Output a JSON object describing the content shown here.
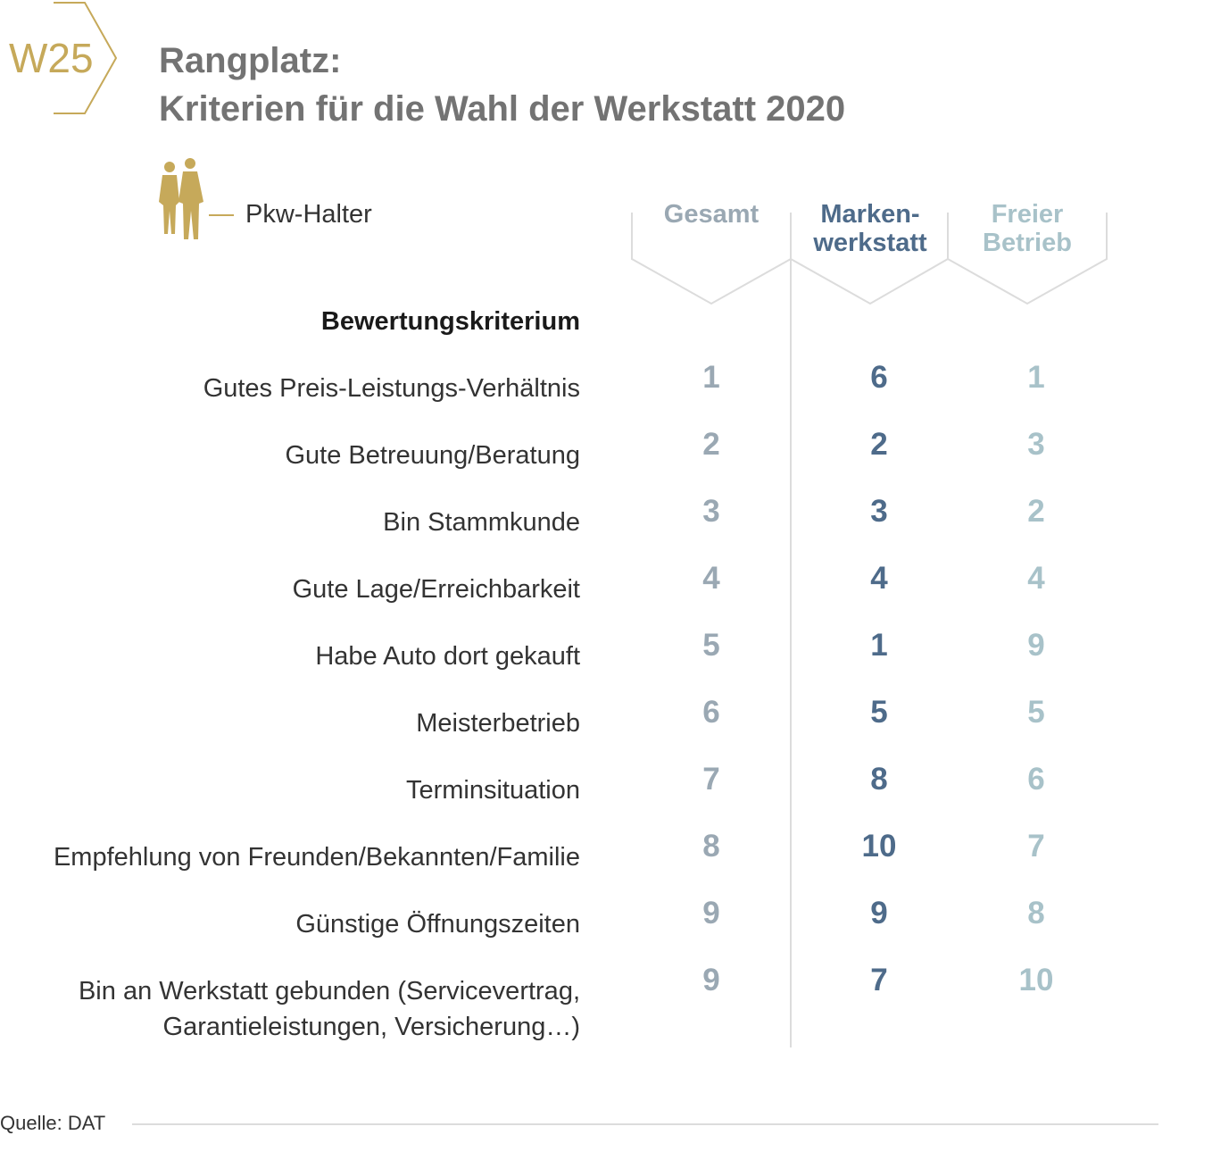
{
  "badge": {
    "label": "W25"
  },
  "title": {
    "line1": "Rangplatz:",
    "line2": "Kriterien für die Wahl der Werkstatt 2020"
  },
  "legend": {
    "label": "Pkw-Halter",
    "icon": "people-silhouette-icon"
  },
  "colors": {
    "gold": "#c6a95a",
    "gesamt": "#9aa8b3",
    "markenwerkstatt": "#4e6b8a",
    "freier_betrieb": "#a8c2c9",
    "text": "#333333",
    "title": "#737373"
  },
  "chart_data": {
    "type": "table",
    "row_header": "Bewertungskriterium",
    "columns": [
      {
        "key": "gesamt",
        "line1": "Gesamt",
        "line2": ""
      },
      {
        "key": "markenwerkstatt",
        "line1": "Marken-",
        "line2": "werkstatt"
      },
      {
        "key": "freier_betrieb",
        "line1": "Freier",
        "line2": "Betrieb"
      }
    ],
    "rows": [
      {
        "line1": "Gutes Preis-Leistungs-Verhältnis",
        "line2": "",
        "gesamt": "1",
        "markenwerkstatt": "6",
        "freier_betrieb": "1"
      },
      {
        "line1": "Gute Betreuung/Beratung",
        "line2": "",
        "gesamt": "2",
        "markenwerkstatt": "2",
        "freier_betrieb": "3"
      },
      {
        "line1": "Bin Stammkunde",
        "line2": "",
        "gesamt": "3",
        "markenwerkstatt": "3",
        "freier_betrieb": "2"
      },
      {
        "line1": "Gute Lage/Erreichbarkeit",
        "line2": "",
        "gesamt": "4",
        "markenwerkstatt": "4",
        "freier_betrieb": "4"
      },
      {
        "line1": "Habe Auto dort gekauft",
        "line2": "",
        "gesamt": "5",
        "markenwerkstatt": "1",
        "freier_betrieb": "9"
      },
      {
        "line1": "Meisterbetrieb",
        "line2": "",
        "gesamt": "6",
        "markenwerkstatt": "5",
        "freier_betrieb": "5"
      },
      {
        "line1": "Terminsituation",
        "line2": "",
        "gesamt": "7",
        "markenwerkstatt": "8",
        "freier_betrieb": "6"
      },
      {
        "line1": "Empfehlung von Freunden/Bekannten/Familie",
        "line2": "",
        "gesamt": "8",
        "markenwerkstatt": "10",
        "freier_betrieb": "7"
      },
      {
        "line1": "Günstige Öffnungszeiten",
        "line2": "",
        "gesamt": "9",
        "markenwerkstatt": "9",
        "freier_betrieb": "8"
      },
      {
        "line1": "Bin an Werkstatt gebunden (Servicevertrag,",
        "line2": "Garantieleistungen, Versicherung…)",
        "gesamt": "9",
        "markenwerkstatt": "7",
        "freier_betrieb": "10"
      }
    ]
  },
  "source": "Quelle: DAT"
}
